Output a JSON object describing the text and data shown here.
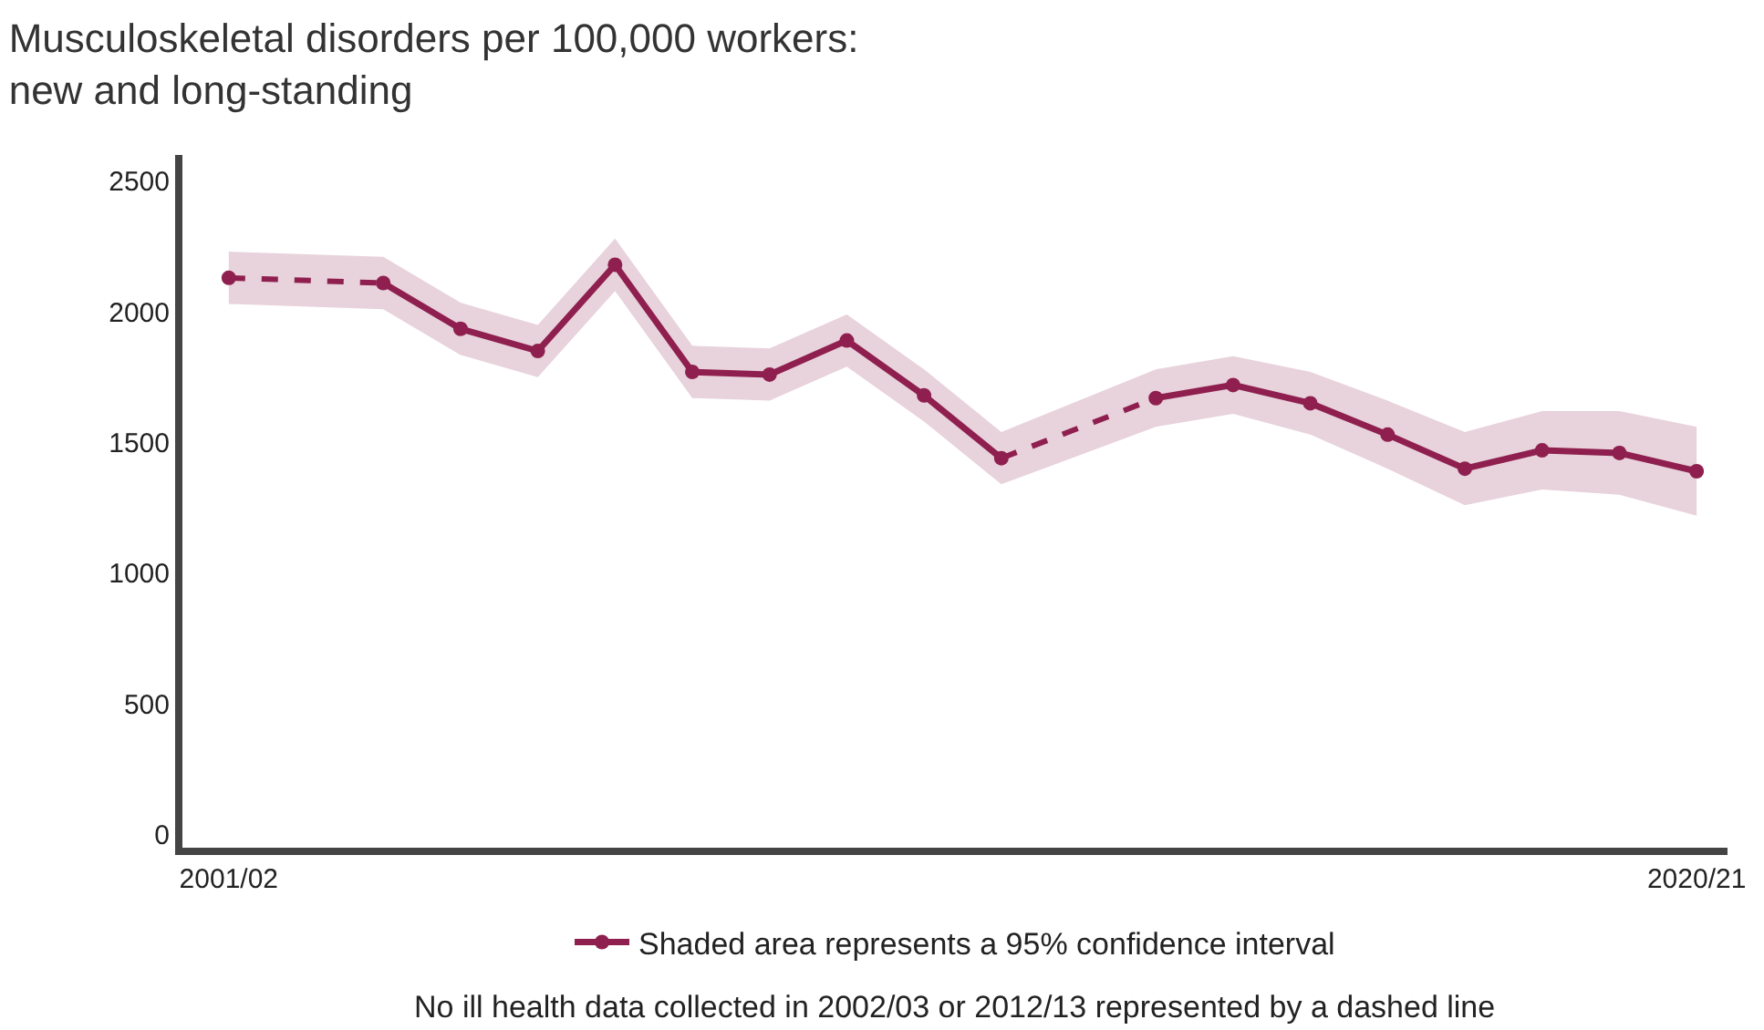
{
  "chart_data": {
    "type": "line",
    "title": "Musculoskeletal disorders per 100,000 workers:\nnew and long-standing",
    "categories": [
      "2001/02",
      null,
      null,
      null,
      null,
      null,
      null,
      null,
      null,
      null,
      null,
      null,
      null,
      null,
      null,
      null,
      null,
      null,
      null,
      "2020/21"
    ],
    "series": [
      {
        "name": "Shaded area represents a 95% confidence interval",
        "color": "#8e1f4e",
        "values": [
          2130,
          null,
          2110,
          1935,
          1850,
          2180,
          1770,
          1760,
          1890,
          1680,
          1440,
          null,
          1670,
          1720,
          1650,
          1530,
          1400,
          1470,
          1460,
          1390
        ],
        "lower": [
          2030,
          null,
          2010,
          1835,
          1750,
          2080,
          1670,
          1660,
          1790,
          1580,
          1340,
          null,
          1560,
          1610,
          1530,
          1400,
          1260,
          1320,
          1300,
          1220
        ],
        "upper": [
          2230,
          null,
          2210,
          2035,
          1950,
          2280,
          1870,
          1860,
          1990,
          1780,
          1540,
          null,
          1780,
          1830,
          1770,
          1660,
          1540,
          1620,
          1620,
          1560
        ]
      }
    ],
    "ylim": [
      -50,
      2600
    ],
    "yticks": [
      0,
      500,
      1000,
      1500,
      2000,
      2500
    ],
    "legend": "bottom",
    "marker": "circle",
    "line_style": "solid",
    "annotations": [
      "No ill health data collected in 2002/03 or 2012/13 represented by a dashed line"
    ]
  }
}
